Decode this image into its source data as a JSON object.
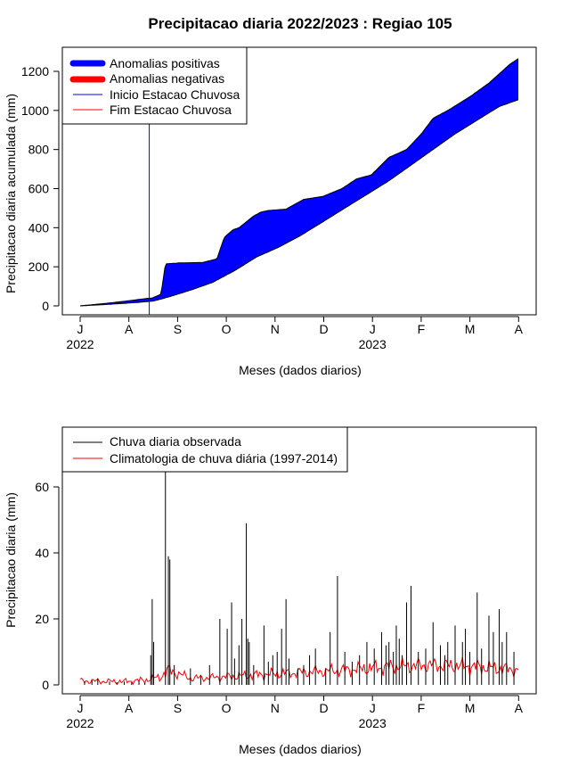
{
  "chart_data": [
    {
      "type": "area",
      "title": "Precipitacao diaria 2022/2023 : Regiao 105",
      "xlabel": "Meses (dados diarios)",
      "ylabel": "Precipitacao diaria acumulada (mm)",
      "ylim": [
        0,
        1300
      ],
      "yticks": [
        0,
        200,
        400,
        600,
        800,
        1000,
        1200
      ],
      "month_ticks": [
        "J",
        "A",
        "S",
        "O",
        "N",
        "D",
        "J",
        "F",
        "M",
        "A"
      ],
      "year_ticks": [
        {
          "label": "2022",
          "month_index": 0
        },
        {
          "label": "2023",
          "month_index": 6
        }
      ],
      "legend": {
        "position": "top-left",
        "items": [
          {
            "label": "Anomalias positivas",
            "color": "#0000ff",
            "style": "thick"
          },
          {
            "label": "Anomalias negativas",
            "color": "#ff0000",
            "style": "thick"
          },
          {
            "label": "Inicio Estacao Chuvosa",
            "color": "#0000ff",
            "style": "thin"
          },
          {
            "label": "Fim Estacao Chuvosa",
            "color": "#ff0000",
            "style": "thin"
          }
        ]
      },
      "rainy_season_start_day": 47,
      "observed_cumulative": {
        "days": [
          0,
          20,
          35,
          45,
          49,
          55,
          58,
          68,
          83,
          93,
          98,
          104,
          108,
          118,
          123,
          128,
          140,
          152,
          165,
          178,
          188,
          198,
          210,
          222,
          232,
          240,
          250,
          265,
          278,
          292,
          298
        ],
        "values": [
          0,
          15,
          28,
          38,
          40,
          60,
          215,
          220,
          222,
          240,
          350,
          390,
          400,
          460,
          480,
          488,
          495,
          545,
          560,
          600,
          650,
          670,
          760,
          800,
          880,
          960,
          1000,
          1070,
          1140,
          1235,
          1265
        ]
      },
      "climatology_cumulative": {
        "days": [
          0,
          20,
          40,
          50,
          60,
          75,
          90,
          105,
          120,
          135,
          150,
          165,
          180,
          195,
          210,
          225,
          240,
          255,
          270,
          285,
          298
        ],
        "values": [
          0,
          8,
          18,
          25,
          45,
          80,
          120,
          180,
          250,
          300,
          360,
          430,
          500,
          570,
          640,
          720,
          800,
          880,
          950,
          1020,
          1055
        ]
      }
    },
    {
      "type": "bar",
      "xlabel": "Meses (dados diarios)",
      "ylabel": "Precipitacao diaria (mm)",
      "ylim": [
        0,
        75
      ],
      "yticks": [
        0,
        20,
        40,
        60
      ],
      "month_ticks": [
        "J",
        "A",
        "S",
        "O",
        "N",
        "D",
        "J",
        "F",
        "M",
        "A"
      ],
      "year_ticks": [
        {
          "label": "2022",
          "month_index": 0
        },
        {
          "label": "2023",
          "month_index": 6
        }
      ],
      "legend": {
        "position": "top-left",
        "items": [
          {
            "label": "Chuva diaria observada",
            "color": "#000000"
          },
          {
            "label": "Climatologia de chuva diária (1997-2014)",
            "color": "#ff0000"
          }
        ]
      },
      "observed_daily": [
        [
          3,
          1.0
        ],
        [
          8,
          1.5
        ],
        [
          12,
          2.0
        ],
        [
          20,
          1.0
        ],
        [
          25,
          0.8
        ],
        [
          30,
          1.0
        ],
        [
          35,
          0.8
        ],
        [
          40,
          1.2
        ],
        [
          44,
          0.6
        ],
        [
          48,
          9
        ],
        [
          49,
          26
        ],
        [
          50,
          13
        ],
        [
          58,
          65
        ],
        [
          60,
          39
        ],
        [
          61,
          38
        ],
        [
          64,
          6
        ],
        [
          75,
          5
        ],
        [
          82,
          3
        ],
        [
          88,
          6
        ],
        [
          95,
          20
        ],
        [
          100,
          17
        ],
        [
          103,
          25
        ],
        [
          105,
          8
        ],
        [
          108,
          12
        ],
        [
          110,
          20
        ],
        [
          113,
          49
        ],
        [
          114,
          14
        ],
        [
          115,
          13
        ],
        [
          118,
          6
        ],
        [
          125,
          18
        ],
        [
          128,
          7
        ],
        [
          131,
          9
        ],
        [
          134,
          10
        ],
        [
          137,
          17
        ],
        [
          140,
          26
        ],
        [
          142,
          8
        ],
        [
          148,
          5
        ],
        [
          152,
          6
        ],
        [
          156,
          9
        ],
        [
          160,
          11
        ],
        [
          167,
          5
        ],
        [
          170,
          16
        ],
        [
          175,
          33
        ],
        [
          180,
          10
        ],
        [
          185,
          7
        ],
        [
          190,
          9
        ],
        [
          195,
          13
        ],
        [
          200,
          11
        ],
        [
          205,
          16
        ],
        [
          208,
          12
        ],
        [
          210,
          13
        ],
        [
          213,
          10
        ],
        [
          215,
          18
        ],
        [
          217,
          14
        ],
        [
          219,
          9
        ],
        [
          222,
          25
        ],
        [
          225,
          30
        ],
        [
          230,
          10
        ],
        [
          235,
          11
        ],
        [
          240,
          19
        ],
        [
          245,
          12
        ],
        [
          248,
          9
        ],
        [
          250,
          13
        ],
        [
          255,
          18
        ],
        [
          260,
          13
        ],
        [
          262,
          17
        ],
        [
          265,
          10
        ],
        [
          270,
          28
        ],
        [
          273,
          11
        ],
        [
          278,
          21
        ],
        [
          281,
          16
        ],
        [
          285,
          23
        ],
        [
          287,
          13
        ],
        [
          290,
          16
        ],
        [
          295,
          10
        ]
      ],
      "climatology_daily_profile": {
        "days": [
          0,
          30,
          45,
          55,
          60,
          75,
          90,
          120,
          150,
          180,
          210,
          240,
          270,
          298
        ],
        "values": [
          1.2,
          1.0,
          1.5,
          2.5,
          4.5,
          2.0,
          2.2,
          3.0,
          3.8,
          4.5,
          5.5,
          6.0,
          5.5,
          4.5
        ]
      }
    }
  ]
}
